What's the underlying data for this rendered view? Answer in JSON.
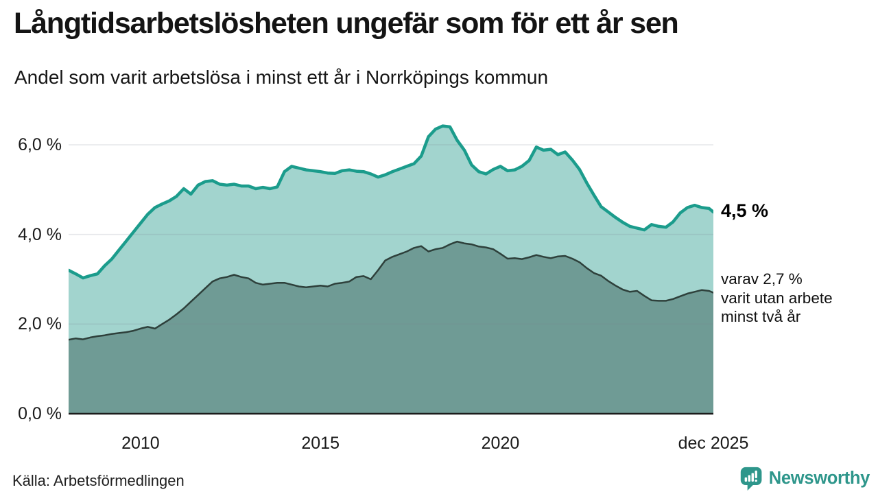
{
  "header": {
    "title": "Långtidsarbetslösheten ungefär som för ett år sen",
    "subtitle": "Andel som varit arbetslösa i minst ett år i Norrköpings kommun"
  },
  "chart_data": {
    "type": "area",
    "title": "Långtidsarbetslösheten ungefär som för ett år sen",
    "subtitle": "Andel som varit arbetslösa i minst ett år i Norrköpings kommun",
    "xlabel": "",
    "ylabel": "",
    "xlim": [
      2008,
      2025.92
    ],
    "ylim": [
      0,
      6.8
    ],
    "grid": true,
    "legend_position": "direct-labels-right",
    "x": [
      2008.0,
      2008.2,
      2008.4,
      2008.6,
      2008.8,
      2009.0,
      2009.2,
      2009.4,
      2009.6,
      2009.8,
      2010.0,
      2010.2,
      2010.4,
      2010.6,
      2010.8,
      2011.0,
      2011.2,
      2011.4,
      2011.6,
      2011.8,
      2012.0,
      2012.2,
      2012.4,
      2012.6,
      2012.8,
      2013.0,
      2013.2,
      2013.4,
      2013.6,
      2013.8,
      2014.0,
      2014.2,
      2014.4,
      2014.6,
      2014.8,
      2015.0,
      2015.2,
      2015.4,
      2015.6,
      2015.8,
      2016.0,
      2016.2,
      2016.4,
      2016.6,
      2016.8,
      2017.0,
      2017.2,
      2017.4,
      2017.6,
      2017.8,
      2018.0,
      2018.2,
      2018.4,
      2018.6,
      2018.8,
      2019.0,
      2019.2,
      2019.4,
      2019.6,
      2019.8,
      2020.0,
      2020.2,
      2020.4,
      2020.6,
      2020.8,
      2021.0,
      2021.2,
      2021.4,
      2021.6,
      2021.8,
      2022.0,
      2022.2,
      2022.4,
      2022.6,
      2022.8,
      2023.0,
      2023.2,
      2023.4,
      2023.6,
      2023.8,
      2024.0,
      2024.2,
      2024.4,
      2024.6,
      2024.8,
      2025.0,
      2025.2,
      2025.4,
      2025.6,
      2025.8,
      2025.92
    ],
    "series": [
      {
        "name": "Andel arbetslösa i minst ett år",
        "end_label": "4,5 %",
        "last_value": 4.5,
        "line_color": "#1B9C8C",
        "fill_color": "#A2D4CE",
        "line_width": 4.5,
        "values": [
          3.2,
          3.12,
          3.03,
          3.08,
          3.12,
          3.3,
          3.45,
          3.65,
          3.85,
          4.05,
          4.25,
          4.45,
          4.6,
          4.68,
          4.75,
          4.85,
          5.02,
          4.9,
          5.1,
          5.18,
          5.2,
          5.12,
          5.1,
          5.12,
          5.08,
          5.08,
          5.02,
          5.05,
          5.02,
          5.06,
          5.4,
          5.52,
          5.48,
          5.44,
          5.42,
          5.4,
          5.37,
          5.36,
          5.42,
          5.44,
          5.41,
          5.4,
          5.35,
          5.28,
          5.33,
          5.4,
          5.46,
          5.52,
          5.58,
          5.75,
          6.18,
          6.35,
          6.42,
          6.4,
          6.1,
          5.88,
          5.55,
          5.4,
          5.35,
          5.45,
          5.52,
          5.42,
          5.44,
          5.52,
          5.65,
          5.95,
          5.88,
          5.9,
          5.78,
          5.84,
          5.66,
          5.45,
          5.15,
          4.88,
          4.62,
          4.5,
          4.38,
          4.27,
          4.18,
          4.14,
          4.1,
          4.22,
          4.18,
          4.16,
          4.28,
          4.48,
          4.6,
          4.65,
          4.6,
          4.58,
          4.5
        ]
      },
      {
        "name": "varav utan arbete minst två år",
        "end_label": "2,7 %",
        "last_value": 2.7,
        "line_color": "#2E403B",
        "fill_color": "#6F9B95",
        "line_width": 2.5,
        "values": [
          1.65,
          1.68,
          1.66,
          1.7,
          1.73,
          1.75,
          1.78,
          1.8,
          1.82,
          1.85,
          1.9,
          1.94,
          1.9,
          2.0,
          2.1,
          2.22,
          2.35,
          2.5,
          2.65,
          2.8,
          2.95,
          3.02,
          3.05,
          3.1,
          3.05,
          3.02,
          2.92,
          2.88,
          2.9,
          2.92,
          2.92,
          2.88,
          2.84,
          2.82,
          2.84,
          2.86,
          2.84,
          2.9,
          2.92,
          2.95,
          3.05,
          3.07,
          3.0,
          3.2,
          3.42,
          3.5,
          3.56,
          3.62,
          3.7,
          3.74,
          3.62,
          3.67,
          3.7,
          3.78,
          3.84,
          3.8,
          3.78,
          3.73,
          3.71,
          3.67,
          3.57,
          3.46,
          3.47,
          3.45,
          3.49,
          3.54,
          3.5,
          3.47,
          3.51,
          3.52,
          3.46,
          3.38,
          3.25,
          3.14,
          3.08,
          2.96,
          2.86,
          2.77,
          2.72,
          2.74,
          2.63,
          2.53,
          2.52,
          2.52,
          2.56,
          2.62,
          2.68,
          2.72,
          2.76,
          2.74,
          2.7
        ]
      }
    ],
    "yticks": [
      {
        "value": 6,
        "label": "6,0 %"
      },
      {
        "value": 4,
        "label": "4,0 %"
      },
      {
        "value": 2,
        "label": "2,0 %"
      },
      {
        "value": 0,
        "label": "0,0 %"
      }
    ],
    "xticks": [
      {
        "value": 2010,
        "label": "2010"
      },
      {
        "value": 2015,
        "label": "2015"
      },
      {
        "value": 2020,
        "label": "2020"
      },
      {
        "value": 2025.92,
        "label": "dec 2025"
      }
    ]
  },
  "annotations": {
    "total_end_label": "4,5 %",
    "sub_line1": "varav 2,7 %",
    "sub_line2": "varit utan arbete",
    "sub_line3": "minst två år"
  },
  "footer": {
    "source": "Källa: Arbetsförmedlingen",
    "brand_name": "Newsworthy"
  },
  "colors": {
    "background": "#ffffff",
    "title_text": "#141414",
    "teal_line": "#1B9C8C",
    "light_fill": "#A2D4CE",
    "dark_fill": "#6F9B95",
    "dark_line": "#2E403B",
    "gridline": "#78879632",
    "axis_line": "#1c1c1c",
    "brand_teal": "#2E968B"
  }
}
